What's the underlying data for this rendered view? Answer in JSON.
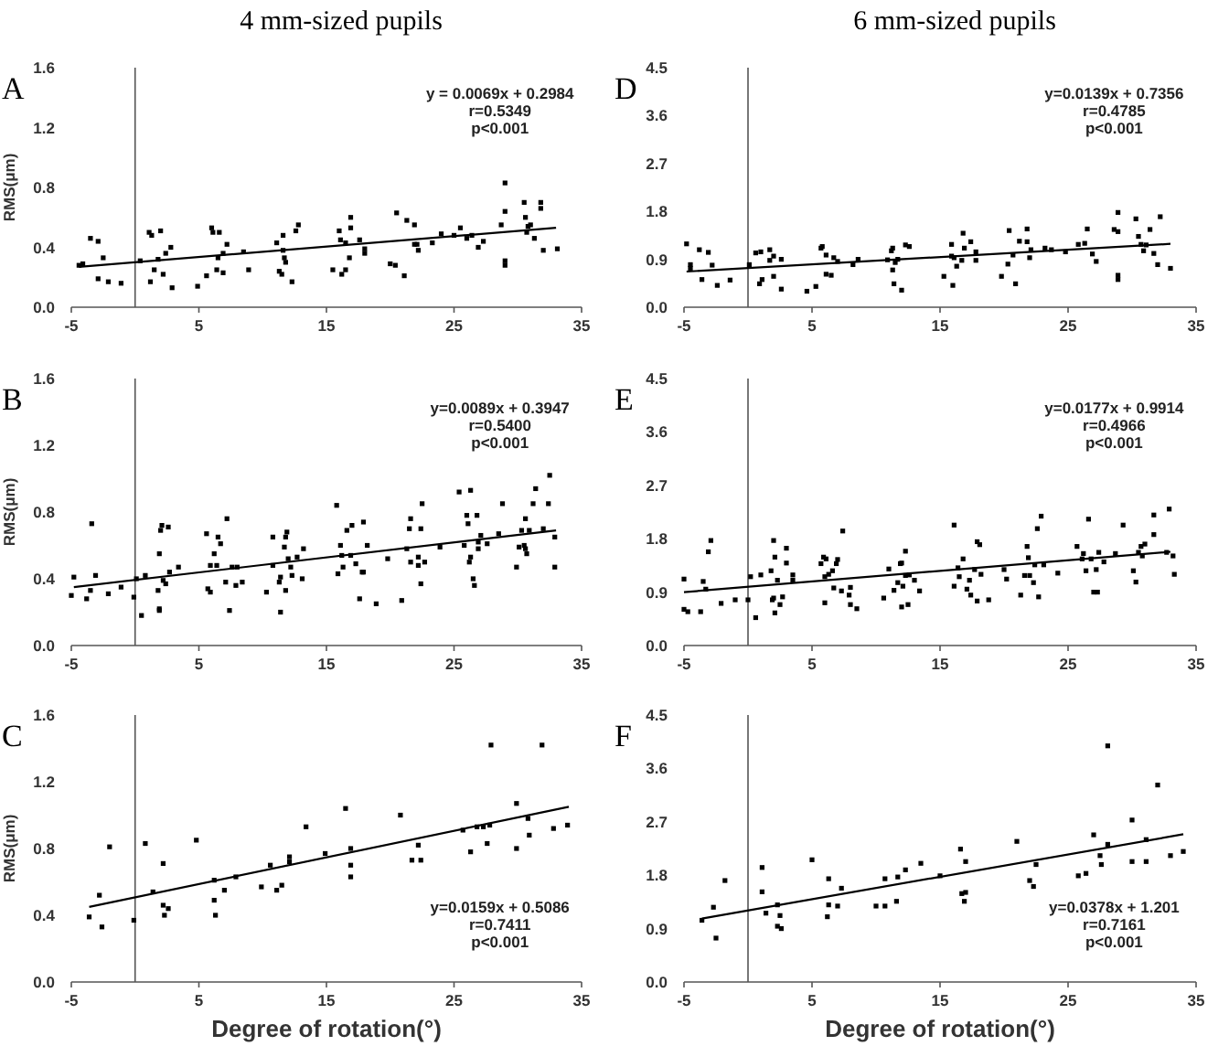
{
  "chart_data": [
    {
      "type": "scatter",
      "title": "A",
      "subtitle": "4 mm-sized pupils",
      "ylabel": "RMS(μm)",
      "xlim": [
        -5,
        35
      ],
      "xticks": [
        -5,
        5,
        15,
        25,
        35
      ],
      "ylim": [
        0,
        1.6
      ],
      "yticks": [
        {
          "value": 0,
          "label": "0.0"
        },
        {
          "value": 0.4,
          "label": "0.4"
        },
        {
          "value": 0.8,
          "label": "0.8"
        },
        {
          "value": 1.2,
          "label": "1.2"
        },
        {
          "value": 1.6,
          "label": "1.6"
        }
      ],
      "ref_lines": [
        {
          "axis": "x",
          "value": 0
        }
      ],
      "annotations": [
        "y = 0.0069x + 0.2984",
        "r=0.5349",
        "p<0.001"
      ],
      "series": [
        {
          "color": "#000000",
          "marker": "square",
          "x": [
            -4.4,
            -4.1,
            -3.5,
            -2.9,
            -2.9,
            -2.5,
            -2.1,
            -1.1,
            0.4,
            1.1,
            1.3,
            1.2,
            1.5,
            1.8,
            2.0,
            2.2,
            2.4,
            2.8,
            2.9,
            4.9,
            5.6,
            6.0,
            6.1,
            6.4,
            6.5,
            6.6,
            6.9,
            6.9,
            7.2,
            8.5,
            8.9,
            11.1,
            11.3,
            11.5,
            11.6,
            11.6,
            11.7,
            11.8,
            12.3,
            12.6,
            12.8,
            15.5,
            16.0,
            16.1,
            16.2,
            16.5,
            16.5,
            16.8,
            16.9,
            16.9,
            17.6,
            18.0,
            18.0,
            20.0,
            20.4,
            20.5,
            21.1,
            21.3,
            21.9,
            21.9,
            22.1,
            22.2,
            23.3,
            24.0,
            25.0,
            25.5,
            26.0,
            26.4,
            26.9,
            27.3,
            28.7,
            29.0,
            29.0,
            29.0,
            29.0,
            30.5,
            30.6,
            30.7,
            30.8,
            31.0,
            31.3,
            31.8,
            31.8,
            32.0,
            33.1
          ],
          "values": [
            0.28,
            0.29,
            0.46,
            0.44,
            0.19,
            0.33,
            0.17,
            0.16,
            0.31,
            0.5,
            0.48,
            0.17,
            0.25,
            0.32,
            0.51,
            0.22,
            0.36,
            0.4,
            0.13,
            0.14,
            0.21,
            0.53,
            0.5,
            0.25,
            0.33,
            0.5,
            0.36,
            0.23,
            0.42,
            0.37,
            0.25,
            0.43,
            0.24,
            0.22,
            0.38,
            0.48,
            0.33,
            0.3,
            0.17,
            0.51,
            0.55,
            0.25,
            0.51,
            0.45,
            0.22,
            0.25,
            0.43,
            0.33,
            0.6,
            0.53,
            0.45,
            0.39,
            0.36,
            0.29,
            0.28,
            0.63,
            0.21,
            0.58,
            0.42,
            0.55,
            0.42,
            0.38,
            0.43,
            0.49,
            0.48,
            0.53,
            0.46,
            0.48,
            0.4,
            0.44,
            0.55,
            0.83,
            0.64,
            0.31,
            0.28,
            0.7,
            0.6,
            0.5,
            0.54,
            0.55,
            0.46,
            0.7,
            0.66,
            0.38,
            0.39
          ]
        },
        {
          "type": "line",
          "color": "#000000",
          "x": [
            -4.4,
            33
          ],
          "values": [
            0.27,
            0.53
          ]
        }
      ]
    },
    {
      "type": "scatter",
      "title": "D",
      "subtitle": "6 mm-sized pupils",
      "xlim": [
        -5,
        35
      ],
      "xticks": [
        -5,
        5,
        15,
        25,
        35
      ],
      "ylim": [
        0,
        4.5
      ],
      "yticks": [
        {
          "value": 0,
          "label": "0.0"
        },
        0.9,
        1.8,
        2.7,
        3.6,
        4.5
      ],
      "ref_lines": [
        {
          "axis": "x",
          "value": 0
        }
      ],
      "annotations": [
        "y=0.0139x + 0.7356",
        "r=0.4785",
        "p<0.001"
      ],
      "series": [
        {
          "color": "#000000",
          "marker": "square",
          "x": [
            -4.8,
            -4.5,
            -4.5,
            -3.8,
            -3.6,
            -3.1,
            -2.8,
            -2.4,
            -1.4,
            0.1,
            0.6,
            1.0,
            0.9,
            1.1,
            1.7,
            1.7,
            2.0,
            2.0,
            2.6,
            2.6,
            4.6,
            5.3,
            5.7,
            5.8,
            6.1,
            6.1,
            6.5,
            6.7,
            7.0,
            8.2,
            8.6,
            10.9,
            11.2,
            11.3,
            11.3,
            11.4,
            11.5,
            11.7,
            12.0,
            12.3,
            12.6,
            15.3,
            15.9,
            15.9,
            16.1,
            16.0,
            16.3,
            16.7,
            16.8,
            16.9,
            17.4,
            17.8,
            17.8,
            19.8,
            20.4,
            20.3,
            20.7,
            20.9,
            21.2,
            21.8,
            21.8,
            22.0,
            22.1,
            23.2,
            23.7,
            24.8,
            25.8,
            26.3,
            26.5,
            26.9,
            27.2,
            28.6,
            28.9,
            28.9,
            28.9,
            28.9,
            30.3,
            30.5,
            30.7,
            30.9,
            31.1,
            31.4,
            31.7,
            32.0,
            32.2,
            33.0
          ],
          "values": [
            1.19,
            0.8,
            0.73,
            1.08,
            0.52,
            1.03,
            0.79,
            0.41,
            0.51,
            0.8,
            1.02,
            1.04,
            0.44,
            0.52,
            0.88,
            1.08,
            0.96,
            0.58,
            0.34,
            0.9,
            0.3,
            0.39,
            1.11,
            1.14,
            0.98,
            0.62,
            0.6,
            0.93,
            0.86,
            0.8,
            0.9,
            0.89,
            1.06,
            1.11,
            0.7,
            0.44,
            0.84,
            0.9,
            0.32,
            1.17,
            1.14,
            0.58,
            1.18,
            0.96,
            0.93,
            0.41,
            0.77,
            0.88,
            1.39,
            1.11,
            1.23,
            1.04,
            0.88,
            0.58,
            1.44,
            0.81,
            0.98,
            0.44,
            1.24,
            1.47,
            1.23,
            0.93,
            1.08,
            1.11,
            1.08,
            1.04,
            1.18,
            1.2,
            1.47,
            1.0,
            0.86,
            1.46,
            1.78,
            1.42,
            0.6,
            0.52,
            1.66,
            1.33,
            1.18,
            1.06,
            1.17,
            1.46,
            1.01,
            0.8,
            1.7,
            0.73
          ]
        },
        {
          "type": "line",
          "color": "#000000",
          "x": [
            -4.8,
            33
          ],
          "values": [
            0.67,
            1.19
          ]
        }
      ]
    },
    {
      "type": "scatter",
      "title": "B",
      "ylabel": "RMS(μm)",
      "xlim": [
        -5,
        35
      ],
      "xticks": [
        -5,
        5,
        15,
        25,
        35
      ],
      "ylim": [
        0,
        1.6
      ],
      "yticks": [
        {
          "value": 0,
          "label": "0.0"
        },
        {
          "value": 0.4,
          "label": "0.4"
        },
        {
          "value": 0.8,
          "label": "0.8"
        },
        {
          "value": 1.2,
          "label": "1.2"
        },
        {
          "value": 1.6,
          "label": "1.6"
        }
      ],
      "ref_lines": [
        {
          "axis": "x",
          "value": 0
        }
      ],
      "annotations": [
        "y=0.0089x + 0.3947",
        "r=0.5400",
        "p<0.001"
      ],
      "series": [
        {
          "color": "#000000",
          "marker": "square",
          "x": [
            -5.0,
            -4.8,
            -3.8,
            -3.5,
            -3.4,
            -3.1,
            -2.1,
            -1.1,
            -0.1,
            0.1,
            0.5,
            0.8,
            1.8,
            1.9,
            1.9,
            1.9,
            2.0,
            2.1,
            2.2,
            2.4,
            2.6,
            2.7,
            3.4,
            5.6,
            5.7,
            5.9,
            5.9,
            6.2,
            6.4,
            6.5,
            6.7,
            7.1,
            7.2,
            7.4,
            7.6,
            7.9,
            8.0,
            8.4,
            10.3,
            10.8,
            10.8,
            11.3,
            11.4,
            11.4,
            11.7,
            11.8,
            11.9,
            11.8,
            12.0,
            12.2,
            12.3,
            12.7,
            13.1,
            13.2,
            15.8,
            15.9,
            16.1,
            16.2,
            16.3,
            16.6,
            16.9,
            17.0,
            17.3,
            17.6,
            17.8,
            17.9,
            17.9,
            18.2,
            18.9,
            19.8,
            20.9,
            21.3,
            21.5,
            21.6,
            21.6,
            22.2,
            22.2,
            22.4,
            22.4,
            22.5,
            22.7,
            23.9,
            25.4,
            25.8,
            26.0,
            26.1,
            26.2,
            26.3,
            26.3,
            26.5,
            26.6,
            26.8,
            26.9,
            26.9,
            27.1,
            27.6,
            28.5,
            28.8,
            29.9,
            30.1,
            30.3,
            30.5,
            30.6,
            30.6,
            30.7,
            30.9,
            31.2,
            31.4,
            32.0,
            32.4,
            32.5,
            32.9,
            32.9
          ],
          "values": [
            0.3,
            0.41,
            0.28,
            0.33,
            0.73,
            0.42,
            0.31,
            0.35,
            0.29,
            0.4,
            0.18,
            0.42,
            0.33,
            0.22,
            0.21,
            0.55,
            0.69,
            0.72,
            0.39,
            0.37,
            0.71,
            0.44,
            0.47,
            0.67,
            0.34,
            0.32,
            0.48,
            0.55,
            0.48,
            0.65,
            0.61,
            0.38,
            0.76,
            0.21,
            0.47,
            0.36,
            0.47,
            0.38,
            0.32,
            0.48,
            0.65,
            0.38,
            0.2,
            0.41,
            0.59,
            0.65,
            0.68,
            0.33,
            0.52,
            0.47,
            0.42,
            0.53,
            0.4,
            0.58,
            0.84,
            0.43,
            0.6,
            0.54,
            0.47,
            0.69,
            0.54,
            0.72,
            0.49,
            0.28,
            0.44,
            0.74,
            0.44,
            0.6,
            0.25,
            0.52,
            0.27,
            0.58,
            0.7,
            0.76,
            0.5,
            0.53,
            0.48,
            0.37,
            0.7,
            0.85,
            0.5,
            0.59,
            0.92,
            0.6,
            0.78,
            0.73,
            0.5,
            0.93,
            0.53,
            0.4,
            0.36,
            0.78,
            0.62,
            0.58,
            0.66,
            0.61,
            0.67,
            0.85,
            0.47,
            0.59,
            0.69,
            0.6,
            0.58,
            0.76,
            0.55,
            0.69,
            0.85,
            0.94,
            0.7,
            0.85,
            1.02,
            0.65,
            0.47
          ]
        },
        {
          "type": "line",
          "color": "#000000",
          "x": [
            -4.8,
            33
          ],
          "values": [
            0.35,
            0.69
          ]
        }
      ]
    },
    {
      "type": "scatter",
      "title": "E",
      "xlim": [
        -5,
        35
      ],
      "xticks": [
        -5,
        5,
        15,
        25,
        35
      ],
      "ylim": [
        0,
        4.5
      ],
      "yticks": [
        {
          "value": 0,
          "label": "0.0"
        },
        0.9,
        1.8,
        2.7,
        3.6,
        4.5
      ],
      "ref_lines": [
        {
          "axis": "x",
          "value": 0
        }
      ],
      "annotations": [
        "y=0.0177x + 0.9914",
        "r=0.4966",
        "p<0.001"
      ],
      "series": [
        {
          "color": "#000000",
          "marker": "square",
          "x": [
            -5.0,
            -5.0,
            -4.7,
            -3.7,
            -3.5,
            -3.3,
            -3.1,
            -2.9,
            -2.1,
            -1.0,
            0.0,
            0.2,
            0.6,
            1.0,
            1.8,
            1.9,
            2.0,
            2.0,
            2.1,
            2.1,
            2.3,
            2.5,
            2.7,
            3.0,
            3.0,
            3.5,
            3.5,
            5.7,
            5.9,
            6.0,
            6.0,
            6.1,
            6.3,
            6.6,
            6.7,
            6.9,
            7.0,
            7.3,
            7.4,
            7.9,
            8.0,
            8.0,
            8.5,
            10.6,
            11.0,
            11.4,
            11.7,
            11.9,
            12.0,
            12.0,
            12.1,
            12.3,
            12.3,
            12.5,
            12.6,
            13.0,
            13.4,
            16.1,
            16.1,
            16.4,
            16.5,
            16.8,
            17.1,
            17.3,
            17.4,
            17.7,
            17.9,
            18.1,
            17.9,
            18.2,
            18.8,
            20.0,
            20.2,
            21.3,
            21.6,
            21.8,
            21.9,
            22.0,
            22.3,
            22.4,
            22.6,
            22.7,
            22.9,
            23.1,
            24.2,
            25.7,
            26.1,
            26.2,
            26.4,
            26.6,
            26.8,
            27.0,
            27.2,
            27.3,
            27.4,
            27.8,
            28.7,
            29.3,
            30.1,
            30.3,
            30.5,
            30.7,
            30.8,
            31.0,
            31.7,
            31.7,
            32.7,
            32.9,
            33.2,
            33.3
          ],
          "values": [
            1.12,
            0.61,
            0.57,
            0.57,
            1.08,
            0.95,
            1.58,
            1.77,
            0.71,
            0.77,
            0.77,
            1.16,
            0.47,
            1.19,
            1.26,
            0.77,
            1.77,
            0.8,
            0.55,
            1.49,
            1.1,
            0.69,
            0.82,
            1.39,
            1.64,
            1.1,
            1.19,
            1.38,
            1.49,
            0.72,
            1.16,
            1.46,
            1.2,
            1.26,
            0.97,
            1.38,
            1.45,
            0.92,
            1.93,
            0.85,
            0.98,
            0.69,
            0.62,
            0.8,
            1.29,
            0.93,
            1.06,
            1.38,
            1.39,
            0.65,
            1.0,
            1.18,
            1.59,
            0.69,
            1.19,
            1.1,
            0.92,
            2.03,
            1.0,
            1.31,
            1.16,
            1.46,
            0.95,
            1.1,
            0.85,
            1.28,
            1.75,
            1.7,
            0.75,
            1.2,
            0.77,
            1.28,
            1.12,
            0.85,
            1.18,
            1.67,
            1.48,
            1.18,
            1.06,
            1.36,
            1.97,
            0.82,
            2.18,
            1.36,
            1.22,
            1.67,
            1.46,
            1.55,
            1.26,
            2.13,
            1.46,
            0.9,
            1.28,
            0.9,
            1.57,
            1.41,
            1.55,
            2.03,
            1.26,
            1.07,
            1.57,
            1.67,
            1.51,
            1.71,
            2.2,
            1.87,
            1.57,
            2.3,
            1.51,
            1.2
          ]
        },
        {
          "type": "line",
          "color": "#000000",
          "x": [
            -5,
            33
          ],
          "values": [
            0.9,
            1.58
          ]
        }
      ]
    },
    {
      "type": "scatter",
      "title": "C",
      "ylabel": "RMS(μm)",
      "xlabel": "Degree of rotation(°)",
      "xlim": [
        -5,
        35
      ],
      "xticks": [
        -5,
        5,
        15,
        25,
        35
      ],
      "ylim": [
        0,
        1.6
      ],
      "yticks": [
        {
          "value": 0,
          "label": "0.0"
        },
        {
          "value": 0.4,
          "label": "0.4"
        },
        {
          "value": 0.8,
          "label": "0.8"
        },
        {
          "value": 1.2,
          "label": "1.2"
        },
        {
          "value": 1.6,
          "label": "1.6"
        }
      ],
      "ref_lines": [
        {
          "axis": "x",
          "value": 0
        }
      ],
      "annotations": [
        "y=0.0159x + 0.5086",
        "r=0.7411",
        "p<0.001"
      ],
      "series": [
        {
          "color": "#000000",
          "marker": "square",
          "x": [
            -3.6,
            -2.8,
            -2.6,
            -2.0,
            -0.1,
            0.8,
            1.4,
            2.2,
            2.2,
            2.3,
            2.6,
            4.8,
            6.2,
            6.2,
            6.3,
            7.0,
            7.9,
            9.9,
            10.6,
            11.1,
            11.5,
            12.1,
            12.1,
            13.4,
            14.9,
            16.5,
            16.9,
            16.9,
            16.9,
            20.8,
            21.7,
            22.2,
            22.4,
            25.7,
            26.3,
            26.8,
            27.3,
            27.6,
            27.8,
            27.9,
            29.9,
            29.9,
            30.8,
            30.9,
            31.9,
            32.8,
            33.9
          ],
          "values": [
            0.39,
            0.52,
            0.33,
            0.81,
            0.37,
            0.83,
            0.54,
            0.71,
            0.46,
            0.4,
            0.44,
            0.85,
            0.61,
            0.49,
            0.4,
            0.55,
            0.63,
            0.57,
            0.7,
            0.55,
            0.58,
            0.75,
            0.72,
            0.93,
            0.77,
            1.04,
            0.8,
            0.7,
            0.63,
            1.0,
            0.73,
            0.82,
            0.73,
            0.91,
            0.78,
            0.93,
            0.93,
            0.83,
            0.94,
            1.42,
            1.07,
            0.8,
            0.98,
            0.88,
            1.42,
            0.92,
            0.94
          ]
        },
        {
          "type": "line",
          "color": "#000000",
          "x": [
            -3.6,
            34
          ],
          "values": [
            0.45,
            1.05
          ]
        }
      ]
    },
    {
      "type": "scatter",
      "title": "F",
      "xlabel": "Degree of rotation(°)",
      "xlim": [
        -5,
        35
      ],
      "xticks": [
        -5,
        5,
        15,
        25,
        35
      ],
      "ylim": [
        0,
        4.5
      ],
      "yticks": [
        {
          "value": 0,
          "label": "0.0"
        },
        0.9,
        1.8,
        2.7,
        3.6,
        4.5
      ],
      "ref_lines": [
        {
          "axis": "x",
          "value": 0
        }
      ],
      "annotations": [
        "y=0.0378x + 1.201",
        "r=0.7161",
        "p<0.001"
      ],
      "series": [
        {
          "color": "#000000",
          "marker": "square",
          "x": [
            -3.6,
            -2.7,
            -2.5,
            -1.8,
            1.1,
            1.1,
            1.4,
            2.3,
            2.3,
            2.5,
            2.6,
            5.0,
            6.2,
            6.3,
            6.3,
            7.0,
            7.3,
            10.0,
            10.7,
            10.7,
            11.6,
            11.7,
            12.3,
            13.5,
            15.0,
            16.6,
            16.7,
            16.9,
            17.0,
            17.0,
            21.0,
            22.0,
            22.3,
            22.5,
            25.8,
            26.4,
            27.0,
            27.5,
            27.6,
            28.1,
            28.1,
            30.0,
            30.0,
            31.1,
            31.1,
            32.0,
            33.0,
            34.0
          ],
          "values": [
            1.04,
            1.26,
            0.74,
            1.71,
            1.93,
            1.52,
            1.16,
            1.3,
            0.94,
            1.12,
            0.9,
            2.06,
            1.1,
            1.3,
            1.74,
            1.28,
            1.58,
            1.28,
            1.28,
            1.74,
            1.36,
            1.77,
            1.89,
            2.0,
            1.79,
            2.24,
            1.49,
            1.36,
            1.51,
            2.03,
            2.37,
            1.71,
            1.61,
            1.98,
            1.79,
            1.83,
            2.48,
            2.13,
            1.98,
            2.32,
            3.98,
            2.73,
            2.03,
            2.4,
            2.03,
            3.32,
            2.13,
            2.2
          ]
        },
        {
          "type": "line",
          "color": "#000000",
          "x": [
            -3.6,
            34
          ],
          "values": [
            1.07,
            2.49
          ]
        }
      ]
    }
  ]
}
